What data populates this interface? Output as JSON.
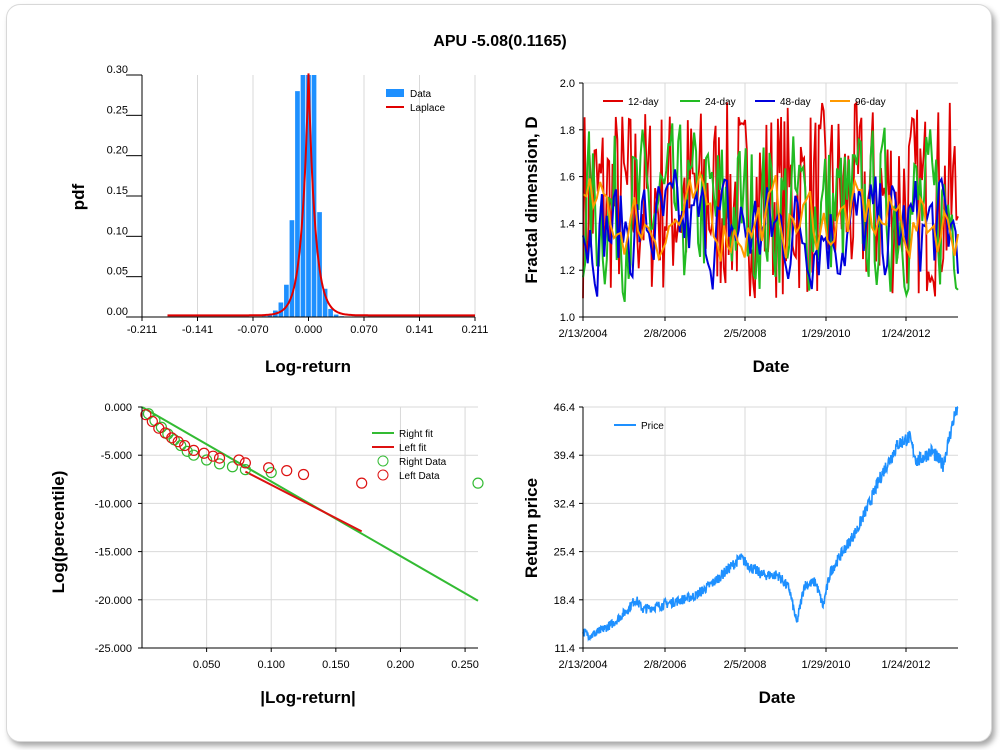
{
  "title": "APU -5.08(0.1165)",
  "chart_data": [
    {
      "type": "bar",
      "id": "pdf",
      "xlabel": "Log-return",
      "ylabel": "pdf",
      "xlim": [
        -0.211,
        0.211
      ],
      "ylim": [
        0,
        0.3
      ],
      "xticks": [
        "-0.211",
        "-0.141",
        "-0.070",
        "0.000",
        "0.070",
        "0.141",
        "0.211"
      ],
      "yticks": [
        "0.00",
        "0.05",
        "0.10",
        "0.15",
        "0.20",
        "0.25",
        "0.30"
      ],
      "legend": [
        "Data",
        "Laplace"
      ],
      "bin_centers": [
        -0.056,
        -0.049,
        -0.042,
        -0.035,
        -0.028,
        -0.021,
        -0.014,
        -0.007,
        0.0,
        0.007,
        0.014,
        0.021,
        0.028,
        0.035,
        0.042
      ],
      "bin_values": [
        0.001,
        0.003,
        0.008,
        0.018,
        0.04,
        0.12,
        0.28,
        0.3,
        0.3,
        0.3,
        0.13,
        0.035,
        0.01,
        0.003,
        0.001
      ],
      "colors": {
        "data": "#1e90ff",
        "laplace": "#e00000"
      }
    },
    {
      "type": "line",
      "id": "fractal",
      "xlabel": "Date",
      "ylabel": "Fractal dimension, D",
      "ylim": [
        1.0,
        2.0
      ],
      "xticks": [
        "2/13/2004",
        "2/8/2006",
        "2/5/2008",
        "1/29/2010",
        "1/24/2012"
      ],
      "yticks": [
        "1.0",
        "1.2",
        "1.4",
        "1.6",
        "1.8",
        "2.0"
      ],
      "series": [
        {
          "name": "12-day",
          "color": "#e00000"
        },
        {
          "name": "24-day",
          "color": "#22bb22"
        },
        {
          "name": "48-day",
          "color": "#0000dd"
        },
        {
          "name": "96-day",
          "color": "#ff9900"
        }
      ]
    },
    {
      "type": "scatter",
      "id": "tail",
      "xlabel": "|Log-return|",
      "ylabel": "Log(percentile)",
      "xlim": [
        0,
        0.26
      ],
      "ylim": [
        -25,
        0
      ],
      "xticks": [
        "0.050",
        "0.100",
        "0.150",
        "0.200",
        "0.250"
      ],
      "yticks": [
        "0.000",
        "-5.000",
        "-10.000",
        "-15.000",
        "-20.000",
        "-25.000"
      ],
      "legend": [
        "Right fit",
        "Left fit",
        "Right Data",
        "Left Data"
      ],
      "right_fit": [
        [
          0.0,
          0.0
        ],
        [
          0.26,
          -20.1
        ]
      ],
      "left_fit": [
        [
          0.08,
          -6.7
        ],
        [
          0.17,
          -12.9
        ]
      ],
      "right_data": [
        [
          0.005,
          -0.7
        ],
        [
          0.01,
          -1.4
        ],
        [
          0.015,
          -2.1
        ],
        [
          0.02,
          -2.8
        ],
        [
          0.025,
          -3.4
        ],
        [
          0.03,
          -4.0
        ],
        [
          0.035,
          -4.6
        ],
        [
          0.04,
          -5.0
        ],
        [
          0.05,
          -5.5
        ],
        [
          0.06,
          -5.9
        ],
        [
          0.07,
          -6.2
        ],
        [
          0.08,
          -6.5
        ],
        [
          0.1,
          -6.8
        ],
        [
          0.26,
          -7.9
        ]
      ],
      "left_data": [
        [
          0.003,
          -0.8
        ],
        [
          0.008,
          -1.5
        ],
        [
          0.013,
          -2.2
        ],
        [
          0.018,
          -2.7
        ],
        [
          0.023,
          -3.2
        ],
        [
          0.028,
          -3.6
        ],
        [
          0.033,
          -4.0
        ],
        [
          0.04,
          -4.5
        ],
        [
          0.048,
          -4.8
        ],
        [
          0.055,
          -5.1
        ],
        [
          0.06,
          -5.3
        ],
        [
          0.075,
          -5.5
        ],
        [
          0.08,
          -5.8
        ],
        [
          0.098,
          -6.3
        ],
        [
          0.112,
          -6.6
        ],
        [
          0.125,
          -7.0
        ],
        [
          0.17,
          -7.9
        ]
      ],
      "colors": {
        "right": "#33bb33",
        "left": "#dd1111"
      }
    },
    {
      "type": "line",
      "id": "price",
      "xlabel": "Date",
      "ylabel": "Return price",
      "ylim": [
        11.4,
        46.4
      ],
      "xticks": [
        "2/13/2004",
        "2/8/2006",
        "2/5/2008",
        "1/29/2010",
        "1/24/2012"
      ],
      "yticks": [
        "11.4",
        "18.4",
        "25.4",
        "32.4",
        "39.4",
        "46.4"
      ],
      "series": [
        {
          "name": "Price",
          "color": "#1e90ff"
        }
      ],
      "anchors": [
        [
          0.0,
          13.8
        ],
        [
          0.02,
          13.2
        ],
        [
          0.05,
          14.0
        ],
        [
          0.08,
          15.0
        ],
        [
          0.12,
          17.0
        ],
        [
          0.14,
          18.5
        ],
        [
          0.16,
          17.0
        ],
        [
          0.2,
          17.5
        ],
        [
          0.25,
          18.2
        ],
        [
          0.3,
          19.0
        ],
        [
          0.35,
          21.0
        ],
        [
          0.4,
          23.5
        ],
        [
          0.42,
          24.5
        ],
        [
          0.45,
          23.0
        ],
        [
          0.48,
          22.0
        ],
        [
          0.52,
          22.0
        ],
        [
          0.55,
          20.0
        ],
        [
          0.57,
          15.0
        ],
        [
          0.59,
          20.5
        ],
        [
          0.62,
          21.0
        ],
        [
          0.64,
          17.5
        ],
        [
          0.66,
          22.5
        ],
        [
          0.7,
          26.0
        ],
        [
          0.73,
          28.5
        ],
        [
          0.76,
          32.0
        ],
        [
          0.8,
          37.0
        ],
        [
          0.84,
          41.0
        ],
        [
          0.87,
          42.0
        ],
        [
          0.89,
          38.5
        ],
        [
          0.93,
          40.0
        ],
        [
          0.96,
          38.0
        ],
        [
          0.99,
          45.0
        ],
        [
          1.0,
          46.4
        ]
      ]
    }
  ]
}
